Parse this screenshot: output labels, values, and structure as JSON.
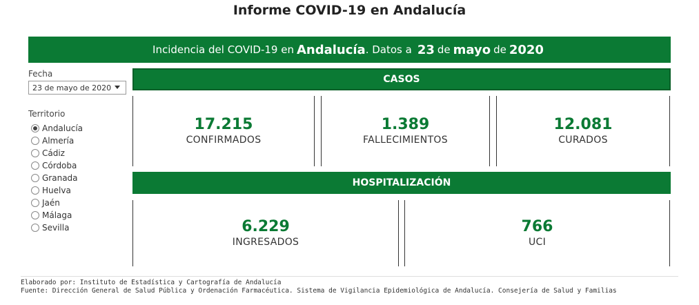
{
  "page_title": "Informe COVID-19 en Andalucía",
  "banner": {
    "prefix": "Incidencia del COVID-19 en",
    "region": "Andalucía",
    "datos": ". Datos a",
    "day": "23",
    "de1": "de",
    "month": "mayo",
    "de2": "de",
    "year": "2020"
  },
  "filters": {
    "fecha_label": "Fecha",
    "fecha_value": "23 de mayo de 2020",
    "territorio_label": "Territorio",
    "territorios": [
      "Andalucía",
      "Almería",
      "Cádiz",
      "Córdoba",
      "Granada",
      "Huelva",
      "Jaén",
      "Málaga",
      "Sevilla"
    ],
    "selected": "Andalucía"
  },
  "casos": {
    "header": "CASOS",
    "confirmados": {
      "value": "17.215",
      "label": "CONFIRMADOS"
    },
    "fallecimientos": {
      "value": "1.389",
      "label": "FALLECIMIENTOS"
    },
    "curados": {
      "value": "12.081",
      "label": "CURADOS"
    }
  },
  "hospitalizacion": {
    "header": "HOSPITALIZACIÓN",
    "ingresados": {
      "value": "6.229",
      "label": "INGRESADOS"
    },
    "uci": {
      "value": "766",
      "label": "UCI"
    }
  },
  "footer": {
    "elaborado": "Elaborado por: Instituto de Estadística y Cartografía de Andalucía",
    "fuente": "Fuente: Dirección General de Salud Pública y Ordenación Farmacéutica. Sistema de Vigilancia Epidemiológica de Andalucía. Consejería de Salud y Familias"
  },
  "colors": {
    "accent": "#0b7a34"
  }
}
